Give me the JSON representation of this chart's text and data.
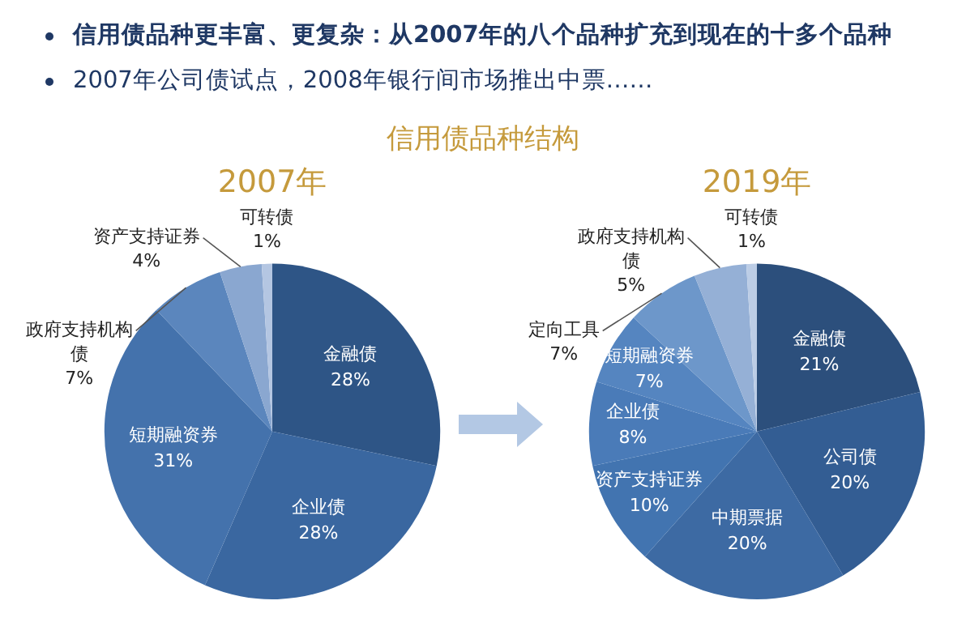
{
  "chart_data": [
    {
      "type": "pie",
      "title": "2007年",
      "annotations": [
        "信用债品种更丰富、更复杂：从2007年的八个品种扩充到现在的十多个品种",
        "2007年公司债试点，2008年银行间市场推出中票……",
        "信用债品种结构"
      ],
      "categories": [
        "金融债",
        "企业债",
        "短期融资券",
        "政府支持机构债",
        "资产支持证券",
        "可转债"
      ],
      "values": [
        28,
        28,
        31,
        7,
        4,
        1
      ],
      "value_labels": [
        "28%",
        "28%",
        "31%",
        "7%",
        "4%",
        "1%"
      ],
      "colors": [
        "#2e5586",
        "#3a67a0",
        "#4472ac",
        "#5b86bd",
        "#8aa7d0",
        "#b4c6e2"
      ],
      "data_labels": true,
      "legend": false
    },
    {
      "type": "pie",
      "title": "2019年",
      "categories": [
        "金融债",
        "公司债",
        "中期票据",
        "资产支持证券",
        "企业债",
        "短期融资券",
        "定向工具",
        "政府支持机构债",
        "可转债"
      ],
      "values": [
        21,
        20,
        20,
        10,
        8,
        7,
        7,
        5,
        1
      ],
      "value_labels": [
        "21%",
        "20%",
        "20%",
        "10%",
        "8%",
        "7%",
        "7%",
        "5%",
        "1%"
      ],
      "colors": [
        "#2c4f7c",
        "#335d93",
        "#3d6aa3",
        "#4274b0",
        "#4a7bb8",
        "#5585c0",
        "#6d97ca",
        "#95b0d6",
        "#bccde6"
      ],
      "data_labels": true,
      "legend": false
    }
  ]
}
